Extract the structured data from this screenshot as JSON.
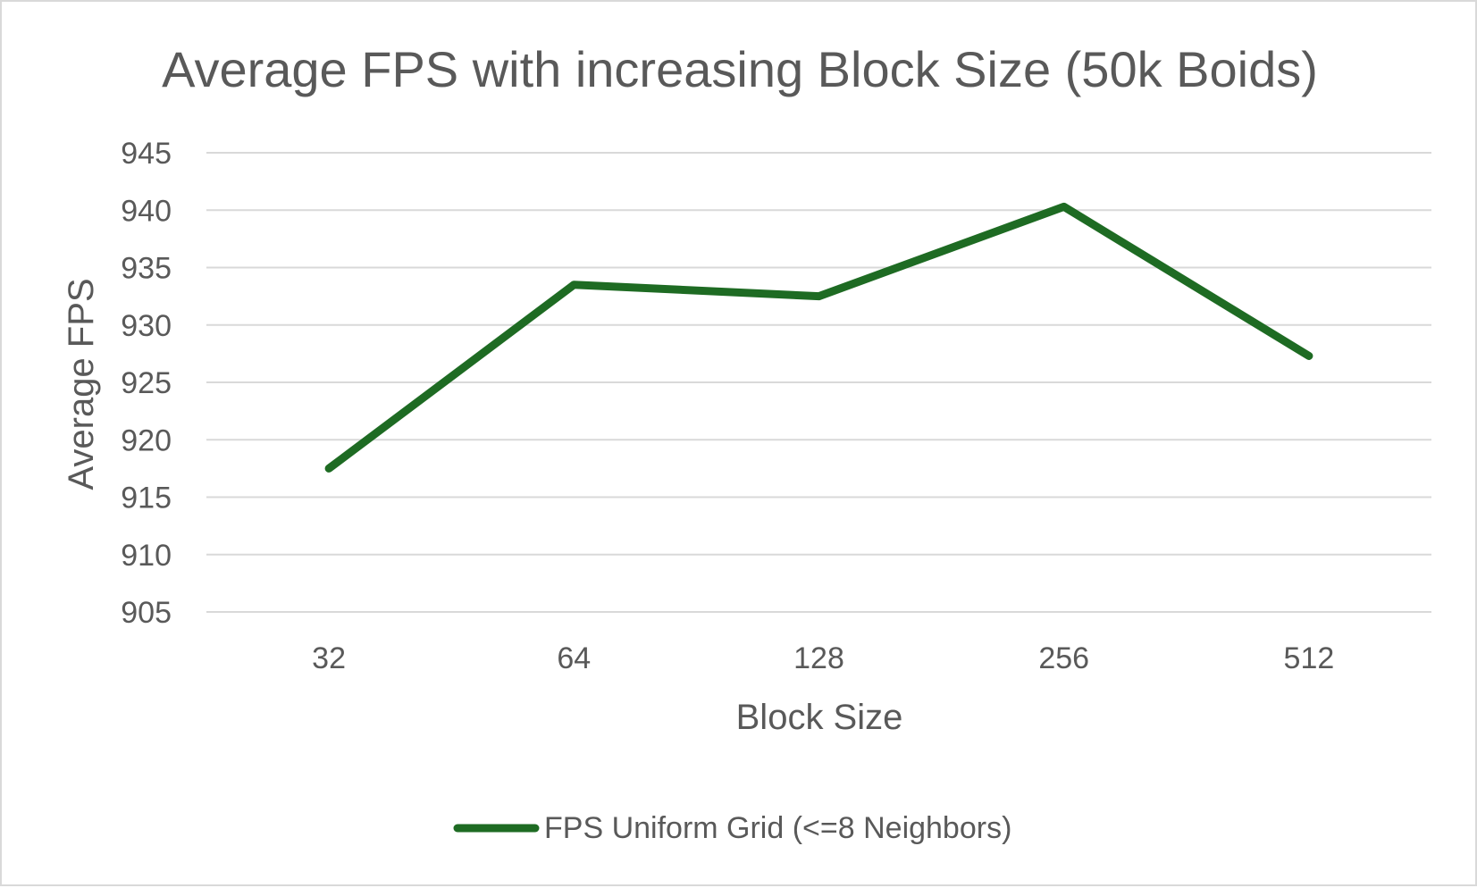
{
  "chart_data": {
    "type": "line",
    "title": "Average FPS with increasing Block Size (50k Boids)",
    "xlabel": "Block Size",
    "ylabel": "Average FPS",
    "categories": [
      "32",
      "64",
      "128",
      "256",
      "512"
    ],
    "series": [
      {
        "name": "FPS Uniform Grid (<=8 Neighbors)",
        "values": [
          917.5,
          933.5,
          932.5,
          940.3,
          927.3
        ],
        "color": "#1e6b23"
      }
    ],
    "ylim": [
      905,
      945
    ],
    "yticks": [
      "905",
      "910",
      "915",
      "920",
      "925",
      "930",
      "935",
      "940",
      "945"
    ],
    "grid": true,
    "legend_position": "bottom"
  }
}
